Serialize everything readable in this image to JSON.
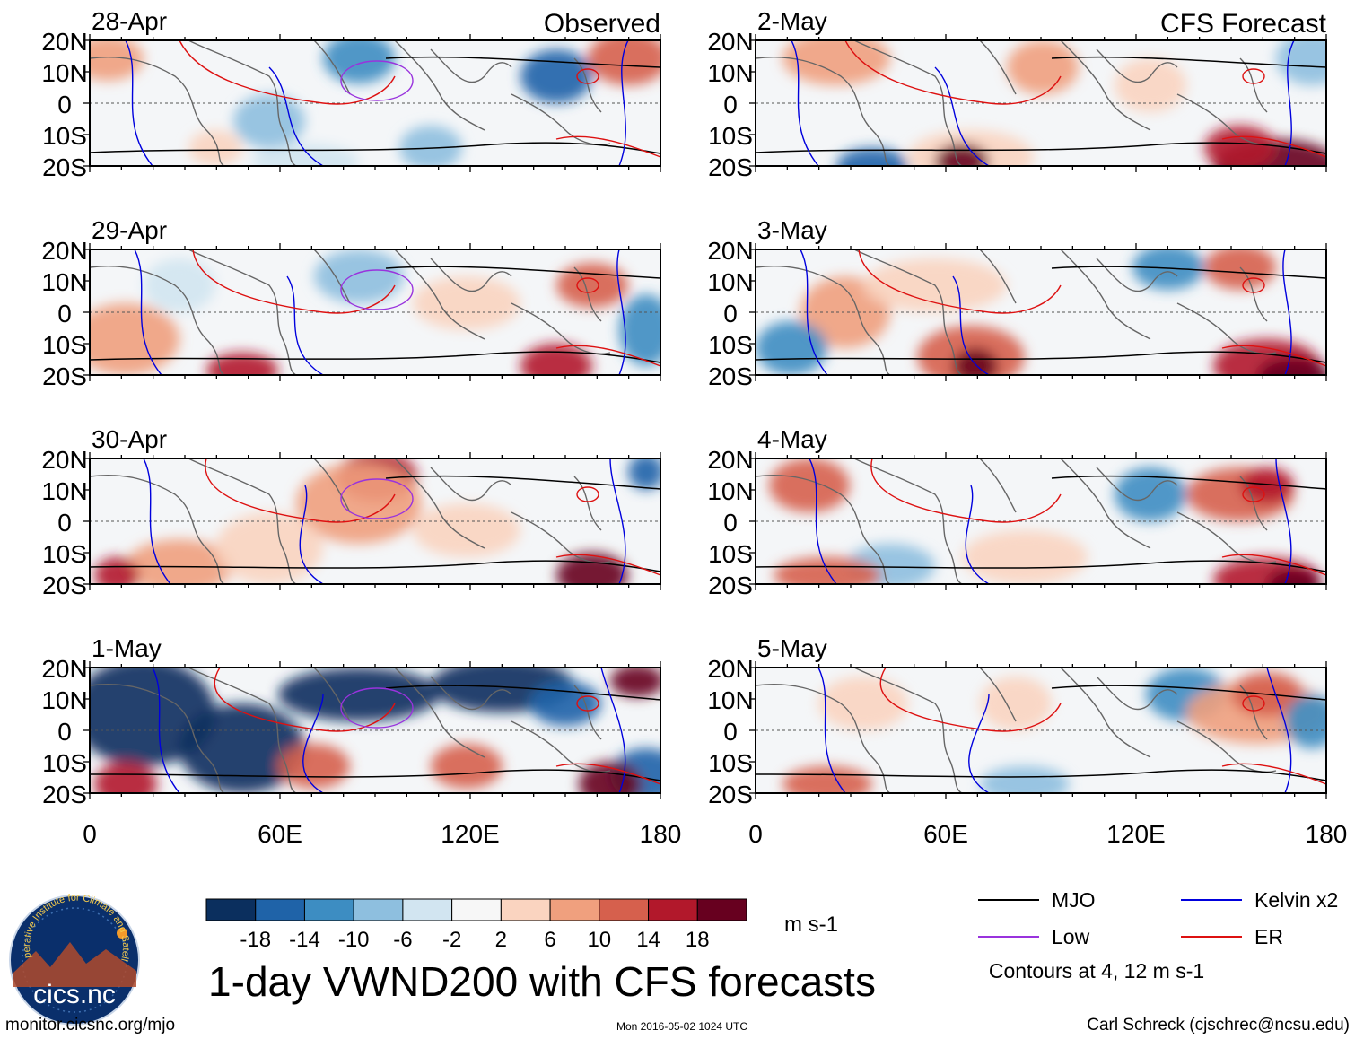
{
  "header": {
    "left_label": "Observed",
    "right_label": "CFS Forecast"
  },
  "panels": [
    {
      "date": "28-Apr",
      "column": "left"
    },
    {
      "date": "29-Apr",
      "column": "left"
    },
    {
      "date": "30-Apr",
      "column": "left"
    },
    {
      "date": "1-May",
      "column": "left"
    },
    {
      "date": "2-May",
      "column": "right"
    },
    {
      "date": "3-May",
      "column": "right"
    },
    {
      "date": "4-May",
      "column": "right"
    },
    {
      "date": "5-May",
      "column": "right"
    }
  ],
  "axes": {
    "y_ticks": [
      "20N",
      "10N",
      "0",
      "10S",
      "20S"
    ],
    "x_ticks": [
      "0",
      "60E",
      "120E",
      "180"
    ]
  },
  "colorbar": {
    "colors": [
      "#0b2f5e",
      "#1f63a8",
      "#3d8dc2",
      "#8ebfdf",
      "#d2e5f1",
      "#f7f7f7",
      "#fad4c0",
      "#f0a07e",
      "#d6604d",
      "#b2182b",
      "#67001f"
    ],
    "tick_labels": [
      "-18",
      "-14",
      "-10",
      "-6",
      "-2",
      "2",
      "6",
      "10",
      "14",
      "18"
    ],
    "units": "m s-1"
  },
  "title": "1-day VWND200 with CFS forecasts",
  "legend": {
    "items": [
      {
        "label": "MJO",
        "color": "#000000"
      },
      {
        "label": "Kelvin x2",
        "color": "#0000dd"
      },
      {
        "label": "Low",
        "color": "#9933dd"
      },
      {
        "label": "ER",
        "color": "#dd1111"
      }
    ],
    "note": "Contours at 4, 12 m s-1"
  },
  "logo": {
    "text": "cics.nc",
    "ring_text": "Cooperative Institute for Climate and Satellites"
  },
  "footer": {
    "left": "monitor.cicsnc.org/mjo",
    "center": "Mon 2016-05-02 1024 UTC",
    "right": "Carl Schreck (cjschrec@ncsu.edu)"
  }
}
